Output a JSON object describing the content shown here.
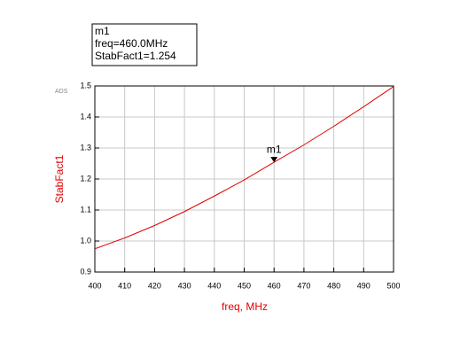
{
  "chart_data": {
    "type": "line",
    "watermark": "ADS",
    "xlabel": "freq, MHz",
    "ylabel": "StabFact1",
    "x": [
      400,
      410,
      420,
      430,
      440,
      450,
      460,
      470,
      480,
      490,
      500
    ],
    "series": [
      {
        "name": "StabFact1",
        "color": "#e00000",
        "values": [
          0.975,
          1.01,
          1.05,
          1.095,
          1.145,
          1.197,
          1.254,
          1.31,
          1.37,
          1.433,
          1.498
        ]
      }
    ],
    "xlim": [
      400,
      500
    ],
    "xticks": [
      400,
      410,
      420,
      430,
      440,
      450,
      460,
      470,
      480,
      490,
      500
    ],
    "ylim": [
      0.9,
      1.5
    ],
    "yticks": [
      0.9,
      {
        "value": 1.0,
        "label": "1.0"
      },
      1.1,
      1.2,
      1.3,
      1.4,
      1.5
    ],
    "grid": true,
    "marker": {
      "name": "m1",
      "x": 460,
      "y": 1.254,
      "readout": [
        "freq=460.0MHz",
        "StabFact1=1.254"
      ]
    }
  }
}
